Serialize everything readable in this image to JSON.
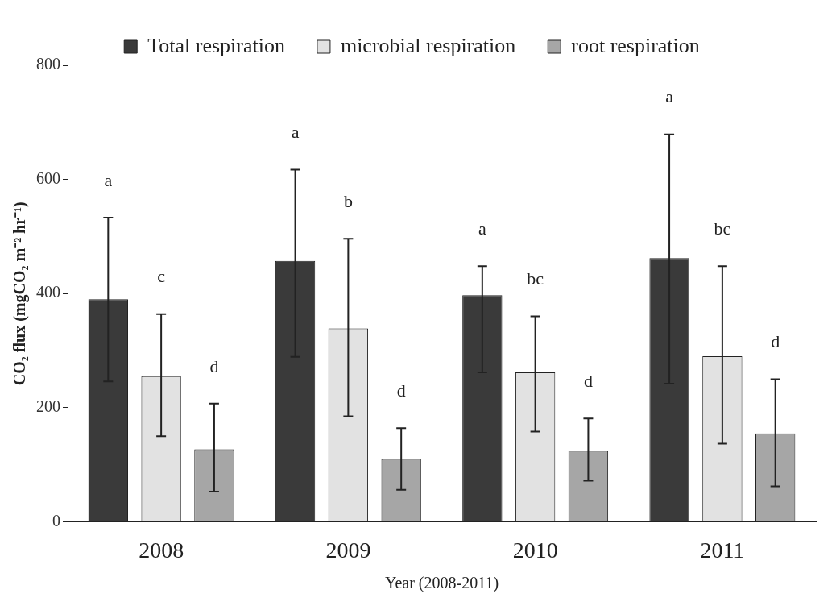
{
  "chart_data": {
    "type": "bar",
    "xlabel": "Year (2008-2011)",
    "ylabel": "CO₂ flux (mgCO₂ m⁻² hr⁻¹)",
    "categories": [
      "2008",
      "2009",
      "2010",
      "2011"
    ],
    "series": [
      {
        "name": "Total respiration",
        "color": "#3a3a3a",
        "values": [
          390,
          457,
          397,
          462
        ],
        "errors": [
          [
            246,
            533
          ],
          [
            289,
            617
          ],
          [
            262,
            448
          ],
          [
            242,
            679
          ]
        ]
      },
      {
        "name": "microbial respiration",
        "color": "#e2e2e2",
        "values": [
          255,
          339,
          262,
          290
        ],
        "errors": [
          [
            150,
            364
          ],
          [
            185,
            496
          ],
          [
            158,
            360
          ],
          [
            137,
            448
          ]
        ]
      },
      {
        "name": "root respiration",
        "color": "#a6a6a6",
        "values": [
          127,
          110,
          124,
          155
        ],
        "errors": [
          [
            53,
            207
          ],
          [
            56,
            164
          ],
          [
            72,
            181
          ],
          [
            62,
            250
          ]
        ]
      }
    ],
    "ylim": [
      0,
      800
    ],
    "yticks": [
      0,
      200,
      400,
      600,
      800
    ],
    "grid": false,
    "legend": "top",
    "annotations": [
      "a",
      "c",
      "d",
      "a",
      "b",
      "d",
      "a",
      "bc",
      "d",
      "a",
      "bc",
      "d"
    ]
  }
}
